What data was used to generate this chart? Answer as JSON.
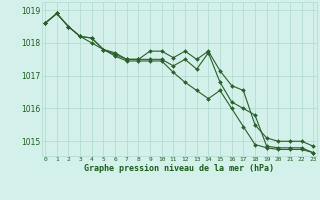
{
  "title": "Graphe pression niveau de la mer (hPa)",
  "background_color": "#d4f0ea",
  "grid_color": "#b0d8d0",
  "line_color": "#2a5f2a",
  "hours": [
    0,
    1,
    2,
    3,
    4,
    5,
    6,
    7,
    8,
    9,
    10,
    11,
    12,
    13,
    14,
    15,
    16,
    17,
    18,
    19,
    20,
    21,
    22,
    23
  ],
  "series1": [
    1018.6,
    1018.9,
    1018.5,
    1018.2,
    1018.15,
    1017.8,
    1017.7,
    1017.5,
    1017.5,
    1017.75,
    1017.75,
    1017.55,
    1017.75,
    1017.5,
    1017.75,
    1017.15,
    1016.7,
    1016.55,
    1015.5,
    1015.1,
    1015.0,
    1015.0,
    1015.0,
    1014.85
  ],
  "series2": [
    1018.6,
    1018.9,
    1018.5,
    1018.2,
    1018.15,
    1017.8,
    1017.65,
    1017.5,
    1017.5,
    1017.5,
    1017.5,
    1017.3,
    1017.5,
    1017.2,
    1017.7,
    1016.8,
    1016.2,
    1016.0,
    1015.8,
    1014.85,
    1014.8,
    1014.8,
    1014.8,
    1014.65
  ],
  "series3": [
    1018.6,
    1018.9,
    1018.5,
    1018.2,
    1018.0,
    1017.8,
    1017.6,
    1017.45,
    1017.45,
    1017.45,
    1017.45,
    1017.1,
    1016.8,
    1016.55,
    1016.3,
    1016.55,
    1016.0,
    1015.45,
    1014.9,
    1014.8,
    1014.75,
    1014.75,
    1014.75,
    1014.65
  ],
  "ylim_min": 1014.55,
  "ylim_max": 1019.25,
  "yticks": [
    1015,
    1016,
    1017,
    1018,
    1019
  ],
  "text_color": "#1a5c1a",
  "marker_size": 2.0,
  "linewidth": 0.8
}
